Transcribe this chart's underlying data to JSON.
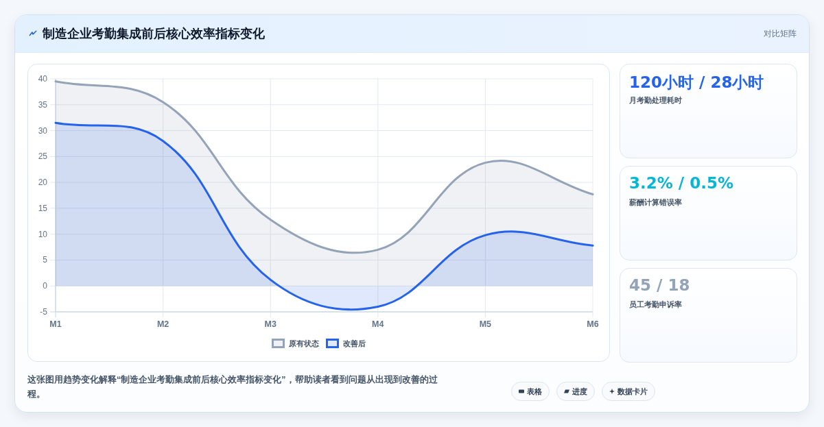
{
  "chart_data": [
    {
      "type": "area",
      "title": "制造企业考勤集成前后核心效率指标变化",
      "categories": [
        "M1",
        "M2",
        "M3",
        "M4",
        "M5",
        "M6"
      ],
      "series": [
        {
          "name": "原有状态",
          "color": "#94a3b8",
          "values": [
            39.5,
            35.5,
            12.8,
            7,
            23.8,
            17.7
          ]
        },
        {
          "name": "改善后",
          "color": "#2563eb",
          "values": [
            31.5,
            28,
            1.2,
            -4,
            9.8,
            7.8
          ]
        }
      ],
      "ylim": [
        -5,
        40
      ],
      "yticks": [
        -5,
        0,
        5,
        10,
        15,
        20,
        25,
        30,
        35,
        40
      ],
      "grid": true,
      "legend": "bottom",
      "annotations": [
        "对比矩阵",
        "这张图用趋势变化解释“制造企业考勤集成前后核心效率指标变化”，帮助读者看到问题从出现到改善的过程。",
        "表格",
        "进度",
        "数据卡片"
      ]
    },
    {
      "type": "other",
      "title": "120小时 / 28小时",
      "subtitle": "月考勤处理耗时",
      "color": "#2563eb"
    },
    {
      "type": "other",
      "title": "3.2% / 0.5%",
      "subtitle": "薪酬计算错误率",
      "color": "#06b6d4"
    },
    {
      "type": "other",
      "title": "45 / 18",
      "subtitle": "员工考勤申诉率",
      "color": "#94a3b8"
    }
  ]
}
